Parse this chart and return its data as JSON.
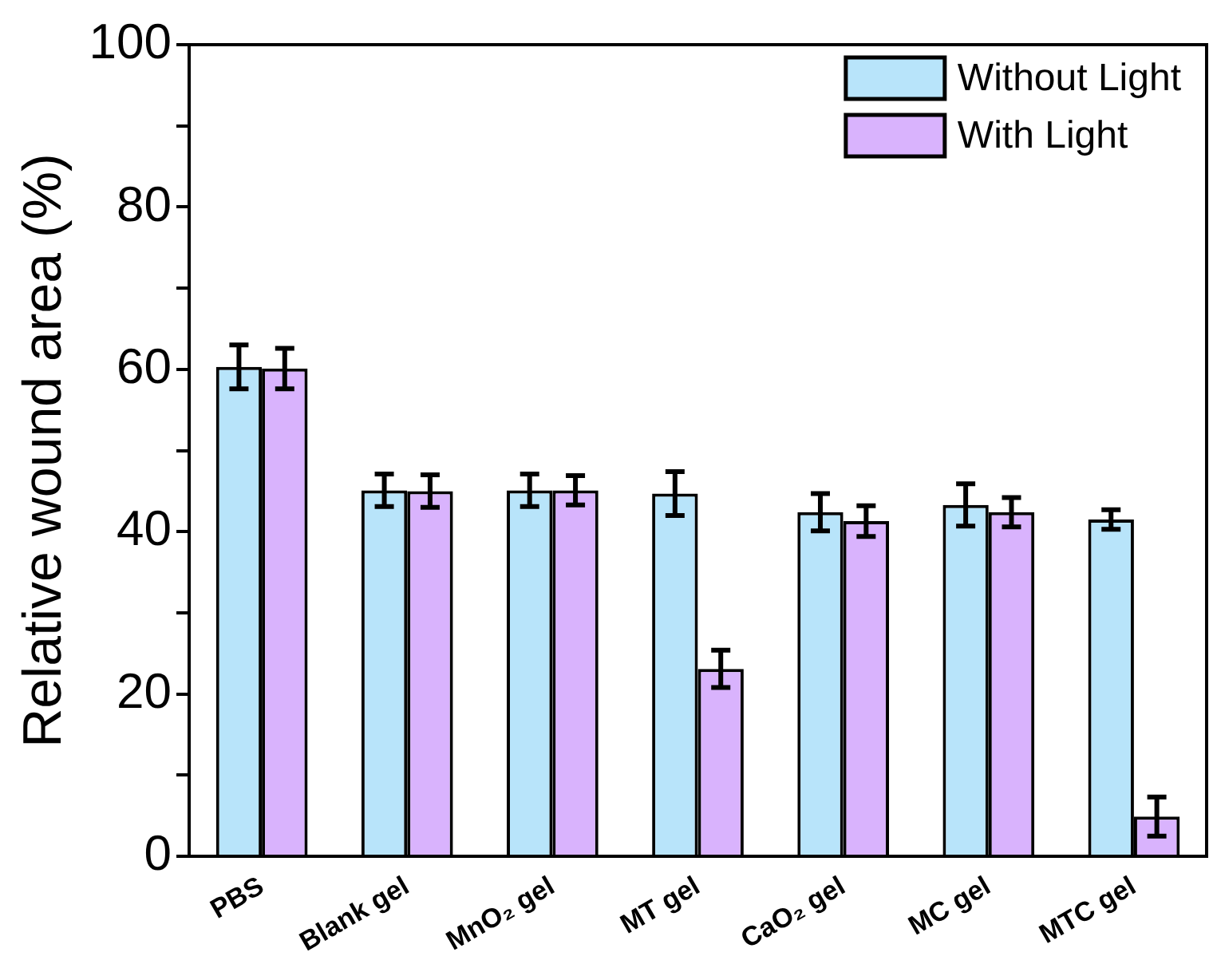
{
  "chart_data": {
    "type": "bar",
    "ylabel": "Relative wound area (%)",
    "categories": [
      "PBS",
      "Blank gel",
      "MnO₂ gel",
      "MT gel",
      "CaO₂ gel",
      "MC gel",
      "MTC gel"
    ],
    "series": [
      {
        "name": "Without Light",
        "color": "#b8e4fa",
        "values": [
          60.3,
          45.1,
          45.1,
          44.7,
          42.4,
          43.3,
          41.5
        ],
        "errors": [
          2.7,
          2,
          2,
          2.7,
          2.3,
          2.6,
          1.2
        ]
      },
      {
        "name": "With Light",
        "color": "#d9b3fd",
        "values": [
          60.1,
          45,
          45.1,
          23.1,
          41.3,
          42.4,
          4.9
        ],
        "errors": [
          2.5,
          2,
          1.8,
          2.3,
          1.9,
          1.8,
          2.4
        ]
      }
    ],
    "ylim": [
      0,
      100
    ],
    "yticks": [
      0,
      {
        "value": 10,
        "label": null
      },
      20,
      {
        "value": 30,
        "label": null
      },
      40,
      {
        "value": 50,
        "label": null
      },
      60,
      {
        "value": 70,
        "label": null
      },
      80,
      {
        "value": 90,
        "label": null
      },
      100
    ],
    "grid": false,
    "legend": "top right"
  }
}
